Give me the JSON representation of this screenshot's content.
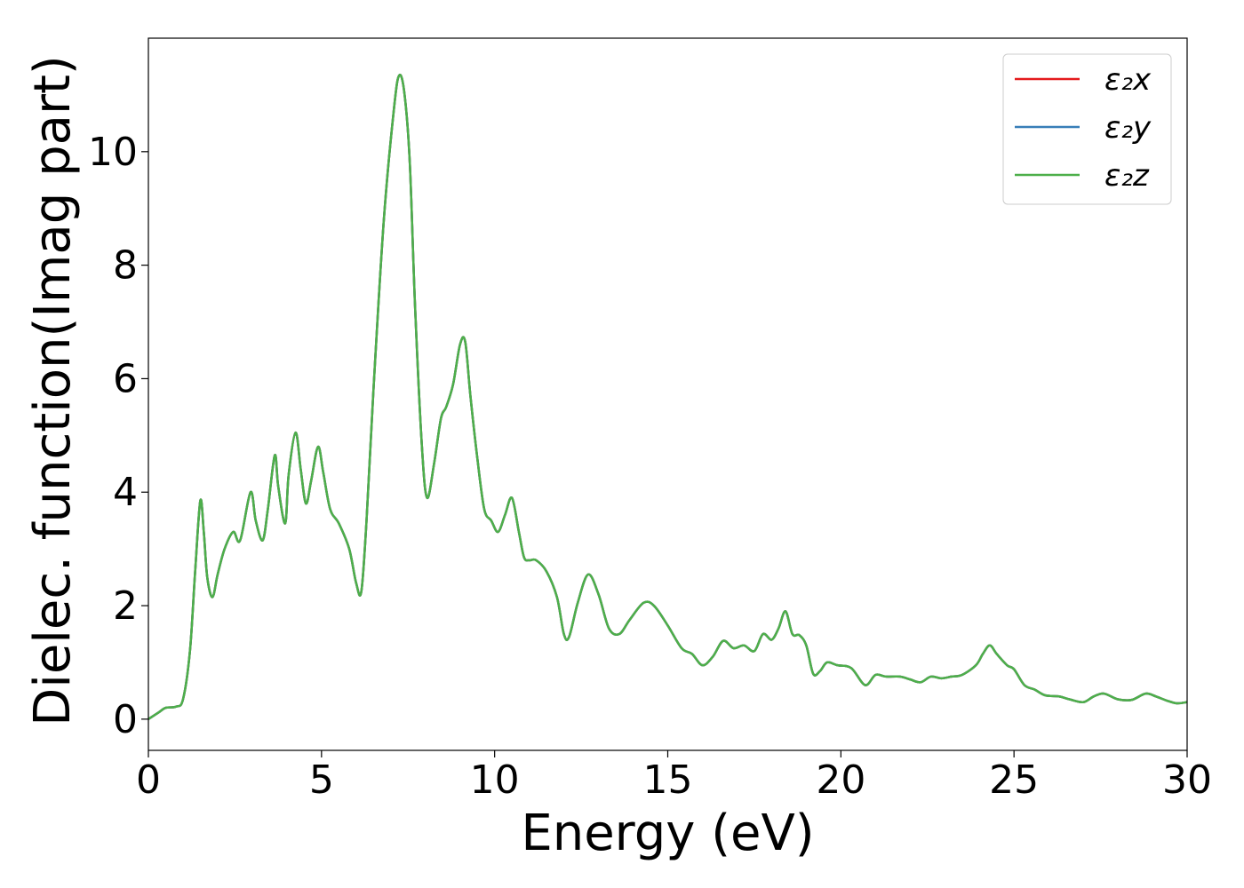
{
  "chart_data": {
    "type": "line",
    "title": "",
    "xlabel": "Energy (eV)",
    "ylabel": "Dielec. function(Imag part)",
    "xlim": [
      0,
      30
    ],
    "ylim": [
      -0.55,
      12.0
    ],
    "xticks": [
      0,
      5,
      10,
      15,
      20,
      25,
      30
    ],
    "yticks": [
      0,
      2,
      4,
      6,
      8,
      10
    ],
    "grid": false,
    "legend_position": "top-right",
    "x": [
      0.0,
      0.3,
      0.5,
      0.8,
      1.0,
      1.2,
      1.35,
      1.5,
      1.6,
      1.7,
      1.85,
      2.0,
      2.2,
      2.45,
      2.65,
      2.95,
      3.1,
      3.3,
      3.45,
      3.65,
      3.75,
      3.95,
      4.05,
      4.25,
      4.4,
      4.55,
      4.7,
      4.9,
      5.05,
      5.25,
      5.5,
      5.8,
      6.0,
      6.15,
      6.3,
      6.5,
      6.8,
      7.1,
      7.25,
      7.4,
      7.55,
      7.7,
      7.9,
      8.05,
      8.25,
      8.45,
      8.6,
      8.8,
      9.0,
      9.15,
      9.3,
      9.5,
      9.7,
      9.9,
      10.1,
      10.3,
      10.5,
      10.7,
      10.85,
      11.0,
      11.2,
      11.5,
      11.8,
      12.0,
      12.15,
      12.4,
      12.7,
      13.0,
      13.3,
      13.6,
      13.9,
      14.3,
      14.6,
      15.0,
      15.4,
      15.7,
      16.0,
      16.3,
      16.6,
      16.9,
      17.2,
      17.5,
      17.75,
      18.0,
      18.2,
      18.4,
      18.6,
      18.8,
      19.0,
      19.2,
      19.4,
      19.6,
      19.9,
      20.3,
      20.7,
      21.0,
      21.3,
      21.7,
      22.0,
      22.3,
      22.6,
      22.9,
      23.2,
      23.5,
      23.9,
      24.1,
      24.3,
      24.5,
      24.8,
      25.0,
      25.3,
      25.6,
      25.9,
      26.3,
      26.6,
      27.0,
      27.3,
      27.6,
      28.0,
      28.4,
      28.8,
      29.1,
      29.4,
      29.7,
      30.0
    ],
    "series": [
      {
        "name": "ε₂x",
        "color": "#e41a1c",
        "values": [
          0.0,
          0.12,
          0.2,
          0.22,
          0.35,
          1.2,
          2.6,
          3.85,
          3.3,
          2.5,
          2.15,
          2.55,
          3.0,
          3.3,
          3.15,
          4.0,
          3.5,
          3.15,
          3.7,
          4.65,
          4.1,
          3.45,
          4.3,
          5.05,
          4.4,
          3.8,
          4.2,
          4.8,
          4.35,
          3.7,
          3.45,
          3.0,
          2.4,
          2.25,
          3.5,
          5.8,
          8.8,
          10.8,
          11.35,
          11.0,
          9.8,
          7.3,
          4.8,
          3.9,
          4.5,
          5.3,
          5.5,
          5.9,
          6.6,
          6.65,
          5.7,
          4.6,
          3.7,
          3.5,
          3.3,
          3.6,
          3.9,
          3.3,
          2.85,
          2.8,
          2.8,
          2.6,
          2.15,
          1.5,
          1.45,
          2.05,
          2.55,
          2.2,
          1.6,
          1.5,
          1.75,
          2.05,
          2.0,
          1.65,
          1.25,
          1.15,
          0.95,
          1.1,
          1.38,
          1.25,
          1.3,
          1.2,
          1.5,
          1.4,
          1.6,
          1.9,
          1.5,
          1.48,
          1.3,
          0.8,
          0.85,
          1.0,
          0.95,
          0.9,
          0.6,
          0.78,
          0.75,
          0.75,
          0.7,
          0.65,
          0.75,
          0.72,
          0.75,
          0.78,
          0.95,
          1.15,
          1.3,
          1.15,
          0.95,
          0.88,
          0.6,
          0.52,
          0.42,
          0.4,
          0.35,
          0.3,
          0.4,
          0.45,
          0.35,
          0.34,
          0.45,
          0.4,
          0.33,
          0.28,
          0.3
        ]
      },
      {
        "name": "ε₂y",
        "color": "#377eb8",
        "values": [
          0.0,
          0.12,
          0.2,
          0.22,
          0.35,
          1.2,
          2.6,
          3.85,
          3.3,
          2.5,
          2.15,
          2.55,
          3.0,
          3.3,
          3.15,
          4.0,
          3.5,
          3.15,
          3.7,
          4.65,
          4.1,
          3.45,
          4.3,
          5.05,
          4.4,
          3.8,
          4.2,
          4.8,
          4.35,
          3.7,
          3.45,
          3.0,
          2.4,
          2.25,
          3.5,
          5.8,
          8.8,
          10.8,
          11.35,
          11.0,
          9.8,
          7.3,
          4.8,
          3.9,
          4.5,
          5.3,
          5.5,
          5.9,
          6.6,
          6.65,
          5.7,
          4.6,
          3.7,
          3.5,
          3.3,
          3.6,
          3.9,
          3.3,
          2.85,
          2.8,
          2.8,
          2.6,
          2.15,
          1.5,
          1.45,
          2.05,
          2.55,
          2.2,
          1.6,
          1.5,
          1.75,
          2.05,
          2.0,
          1.65,
          1.25,
          1.15,
          0.95,
          1.1,
          1.38,
          1.25,
          1.3,
          1.2,
          1.5,
          1.4,
          1.6,
          1.9,
          1.5,
          1.48,
          1.3,
          0.8,
          0.85,
          1.0,
          0.95,
          0.9,
          0.6,
          0.78,
          0.75,
          0.75,
          0.7,
          0.65,
          0.75,
          0.72,
          0.75,
          0.78,
          0.95,
          1.15,
          1.3,
          1.15,
          0.95,
          0.88,
          0.6,
          0.52,
          0.42,
          0.4,
          0.35,
          0.3,
          0.4,
          0.45,
          0.35,
          0.34,
          0.45,
          0.4,
          0.33,
          0.28,
          0.3
        ]
      },
      {
        "name": "ε₂z",
        "color": "#4daf4a",
        "values": [
          0.0,
          0.12,
          0.2,
          0.22,
          0.35,
          1.2,
          2.6,
          3.85,
          3.3,
          2.5,
          2.15,
          2.55,
          3.0,
          3.3,
          3.15,
          4.0,
          3.5,
          3.15,
          3.7,
          4.65,
          4.1,
          3.45,
          4.3,
          5.05,
          4.4,
          3.8,
          4.2,
          4.8,
          4.35,
          3.7,
          3.45,
          3.0,
          2.4,
          2.25,
          3.5,
          5.8,
          8.8,
          10.8,
          11.35,
          11.0,
          9.8,
          7.3,
          4.8,
          3.9,
          4.5,
          5.3,
          5.5,
          5.9,
          6.6,
          6.65,
          5.7,
          4.6,
          3.7,
          3.5,
          3.3,
          3.6,
          3.9,
          3.3,
          2.85,
          2.8,
          2.8,
          2.6,
          2.15,
          1.5,
          1.45,
          2.05,
          2.55,
          2.2,
          1.6,
          1.5,
          1.75,
          2.05,
          2.0,
          1.65,
          1.25,
          1.15,
          0.95,
          1.1,
          1.38,
          1.25,
          1.3,
          1.2,
          1.5,
          1.4,
          1.6,
          1.9,
          1.5,
          1.48,
          1.3,
          0.8,
          0.85,
          1.0,
          0.95,
          0.9,
          0.6,
          0.78,
          0.75,
          0.75,
          0.7,
          0.65,
          0.75,
          0.72,
          0.75,
          0.78,
          0.95,
          1.15,
          1.3,
          1.15,
          0.95,
          0.88,
          0.6,
          0.52,
          0.42,
          0.4,
          0.35,
          0.3,
          0.4,
          0.45,
          0.35,
          0.34,
          0.45,
          0.4,
          0.33,
          0.28,
          0.3
        ]
      }
    ]
  }
}
